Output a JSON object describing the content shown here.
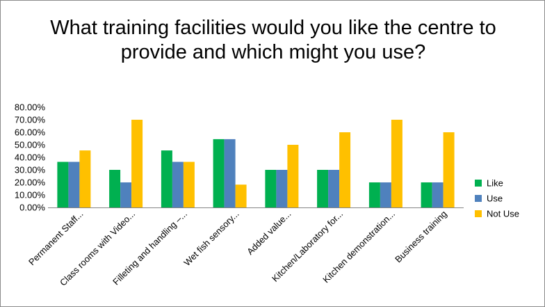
{
  "chart_data": {
    "type": "bar",
    "title": "What training facilities would you like the centre to provide and which might you use?",
    "categories": [
      "Permanent  Staff...",
      "Class rooms with Video...",
      "Filleting and handling –...",
      "Wet fish sensory...",
      "Added value...",
      "Kitchen/Laboratory for...",
      "Kitchen demonstration...",
      "Business training"
    ],
    "series": [
      {
        "name": "Like",
        "color": "#00b050",
        "values": [
          36.4,
          30.0,
          45.5,
          54.5,
          30.0,
          30.0,
          20.0,
          20.0
        ]
      },
      {
        "name": "Use",
        "color": "#4f81bd",
        "values": [
          36.4,
          20.0,
          36.4,
          54.5,
          30.0,
          30.0,
          20.0,
          20.0
        ]
      },
      {
        "name": "Not Use",
        "color": "#ffc000",
        "values": [
          45.5,
          70.0,
          36.4,
          18.2,
          50.0,
          60.0,
          70.0,
          60.0
        ]
      }
    ],
    "yticks": [
      "0.00%",
      "10.00%",
      "20.00%",
      "30.00%",
      "40.00%",
      "50.00%",
      "60.00%",
      "70.00%",
      "80.00%"
    ],
    "ylim": [
      0,
      80
    ],
    "grid": false,
    "legend": "right"
  }
}
